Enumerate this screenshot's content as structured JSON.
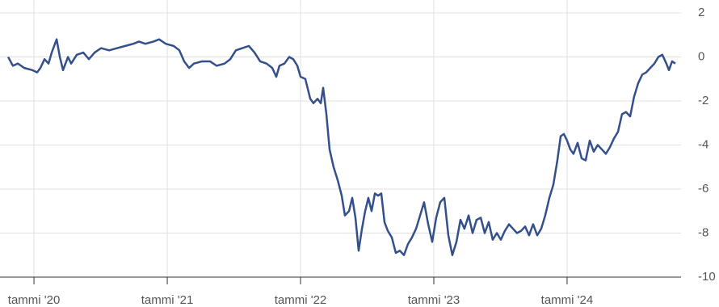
{
  "chart_data": {
    "type": "line",
    "x": [
      2019.806,
      2019.842,
      2019.879,
      2019.927,
      2019.988,
      2020.024,
      2020.048,
      2020.079,
      2020.109,
      2020.133,
      2020.17,
      2020.194,
      2020.218,
      2020.255,
      2020.279,
      2020.321,
      2020.37,
      2020.412,
      2020.455,
      2020.503,
      2020.564,
      2020.624,
      2020.685,
      2020.745,
      2020.788,
      2020.836,
      2020.897,
      2020.939,
      2020.988,
      2021.048,
      2021.091,
      2021.127,
      2021.164,
      2021.2,
      2021.261,
      2021.321,
      2021.37,
      2021.43,
      2021.473,
      2021.515,
      2021.564,
      2021.612,
      2021.655,
      2021.697,
      2021.745,
      2021.788,
      2021.818,
      2021.842,
      2021.879,
      2021.915,
      2021.945,
      2021.976,
      2022.0,
      2022.036,
      2022.073,
      2022.097,
      2022.127,
      2022.152,
      2022.17,
      2022.194,
      2022.218,
      2022.248,
      2022.279,
      2022.309,
      2022.333,
      2022.364,
      2022.388,
      2022.412,
      2022.436,
      2022.461,
      2022.485,
      2022.509,
      2022.533,
      2022.558,
      2022.582,
      2022.606,
      2022.63,
      2022.655,
      2022.685,
      2022.715,
      2022.745,
      2022.776,
      2022.806,
      2022.836,
      2022.867,
      2022.897,
      2022.927,
      2022.958,
      2022.988,
      2023.018,
      2023.048,
      2023.079,
      2023.109,
      2023.139,
      2023.17,
      2023.2,
      2023.23,
      2023.261,
      2023.291,
      2023.321,
      2023.352,
      2023.382,
      2023.412,
      2023.442,
      2023.473,
      2023.503,
      2023.533,
      2023.564,
      2023.594,
      2023.624,
      2023.655,
      2023.685,
      2023.715,
      2023.745,
      2023.776,
      2023.806,
      2023.836,
      2023.867,
      2023.897,
      2023.927,
      2023.952,
      2023.976,
      2024.0,
      2024.024,
      2024.048,
      2024.079,
      2024.109,
      2024.139,
      2024.17,
      2024.2,
      2024.23,
      2024.261,
      2024.291,
      2024.321,
      2024.352,
      2024.382,
      2024.412,
      2024.442,
      2024.473,
      2024.503,
      2024.533,
      2024.564,
      2024.594,
      2024.624,
      2024.655,
      2024.685,
      2024.715,
      2024.745,
      2024.764,
      2024.788,
      2024.812
    ],
    "series": [
      {
        "color": "#34508c",
        "values": [
          0.0,
          -0.4,
          -0.3,
          -0.5,
          -0.6,
          -0.7,
          -0.5,
          -0.1,
          -0.3,
          0.2,
          0.8,
          0.0,
          -0.6,
          0.0,
          -0.3,
          0.1,
          0.2,
          -0.1,
          0.2,
          0.4,
          0.3,
          0.4,
          0.5,
          0.6,
          0.7,
          0.6,
          0.7,
          0.8,
          0.6,
          0.5,
          0.3,
          -0.2,
          -0.5,
          -0.3,
          -0.2,
          -0.2,
          -0.4,
          -0.3,
          -0.1,
          0.3,
          0.4,
          0.5,
          0.2,
          -0.2,
          -0.3,
          -0.5,
          -0.9,
          -0.4,
          -0.3,
          0.0,
          -0.1,
          -0.4,
          -0.9,
          -1.0,
          -1.9,
          -2.1,
          -1.9,
          -2.1,
          -1.4,
          -2.6,
          -4.2,
          -5.0,
          -5.6,
          -6.3,
          -7.2,
          -7.0,
          -6.4,
          -7.3,
          -8.8,
          -7.8,
          -7.0,
          -6.4,
          -7.0,
          -6.2,
          -6.3,
          -6.2,
          -7.5,
          -7.9,
          -8.2,
          -8.9,
          -8.8,
          -9.0,
          -8.5,
          -8.2,
          -7.8,
          -7.2,
          -6.6,
          -7.6,
          -8.4,
          -7.3,
          -6.6,
          -6.4,
          -8.1,
          -9.0,
          -8.4,
          -7.4,
          -7.8,
          -7.2,
          -8.0,
          -7.4,
          -7.3,
          -8.0,
          -7.5,
          -8.3,
          -8.0,
          -8.3,
          -7.9,
          -7.6,
          -7.8,
          -8.0,
          -7.9,
          -7.7,
          -8.1,
          -7.6,
          -8.1,
          -7.8,
          -7.2,
          -6.4,
          -5.8,
          -4.7,
          -3.6,
          -3.5,
          -3.8,
          -4.2,
          -4.4,
          -3.9,
          -4.6,
          -4.7,
          -3.8,
          -4.3,
          -4.0,
          -4.2,
          -4.4,
          -4.1,
          -3.7,
          -3.4,
          -2.6,
          -2.5,
          -2.7,
          -1.8,
          -1.2,
          -0.8,
          -0.7,
          -0.5,
          -0.3,
          0.0,
          0.1,
          -0.3,
          -0.6,
          -0.2,
          -0.3
        ]
      }
    ],
    "xlim": [
      2019.745,
      2024.855
    ],
    "xticks": [
      {
        "value": 2020,
        "label": "tammi '20"
      },
      {
        "value": 2021,
        "label": "tammi '21"
      },
      {
        "value": 2022,
        "label": "tammi '22"
      },
      {
        "value": 2023,
        "label": "tammi '23"
      },
      {
        "value": 2024,
        "label": "tammi '24"
      }
    ],
    "ylim": [
      -10,
      2
    ],
    "yticks": [
      2,
      0,
      -2,
      -4,
      -6,
      -8,
      -10
    ],
    "grid": true
  }
}
